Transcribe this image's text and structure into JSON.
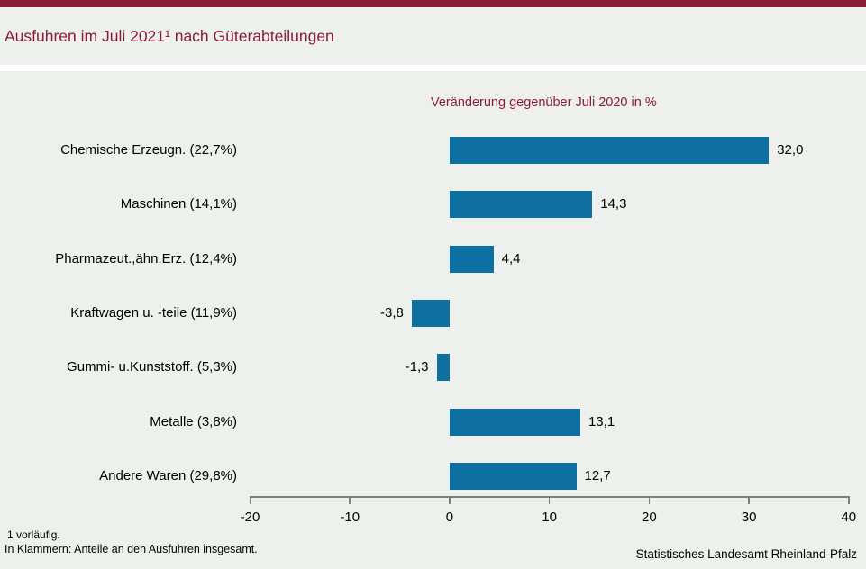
{
  "page": {
    "accent_color": "#8c1d36",
    "background_color": "#eef0ee",
    "axis_color": "#7f7f7f"
  },
  "chart_data": {
    "type": "bar",
    "orientation": "horizontal",
    "title": "Ausfuhren im Juli 2021¹ nach Güterabteilungen",
    "subtitle": "Veränderung gegenüber Juli 2020 in %",
    "categories": [
      "Chemische Erzeugn. (22,7%)",
      "Maschinen (14,1%)",
      "Pharmazeut.,ähn.Erz. (12,4%)",
      "Kraftwagen u. -teile (11,9%)",
      "Gummi- u.Kunststoff. (5,3%)",
      "Metalle (3,8%)",
      "Andere Waren (29,8%)"
    ],
    "values": [
      32.0,
      14.3,
      4.4,
      -3.8,
      -1.3,
      13.1,
      12.7
    ],
    "value_labels": [
      "32,0",
      "14,3",
      "4,4",
      "-3,8",
      "-1,3",
      "13,1",
      "12,7"
    ],
    "xlim": [
      -20,
      40
    ],
    "xticks": [
      -20,
      -10,
      0,
      10,
      20,
      30,
      40
    ],
    "xtick_labels": [
      "-20",
      "-10",
      "0",
      "10",
      "20",
      "30",
      "40"
    ],
    "bar_color": "#0e70a1",
    "grid": false,
    "legend_position": "none"
  },
  "footnotes": [
    "1 vorläufig.",
    "In Klammern: Anteile an den Ausfuhren insgesamt."
  ],
  "source": "Statistisches Landesamt Rheinland-Pfalz"
}
